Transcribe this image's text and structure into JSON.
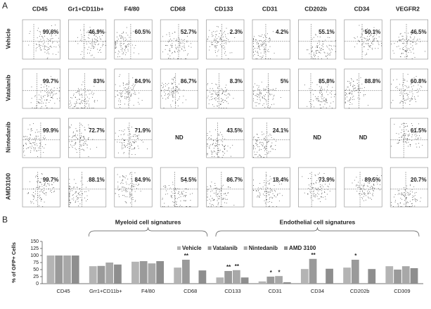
{
  "panel_a": {
    "label": "A",
    "columns": [
      "CD45",
      "Gr1+CD11b+",
      "F4/80",
      "CD68",
      "CD133",
      "CD31",
      "CD202b",
      "CD34",
      "VEGFR2"
    ],
    "rows": [
      {
        "name": "Vehicle",
        "cells": [
          "99.6%",
          "46.9%",
          "60.5%",
          "52.7%",
          "2.3%",
          "4.2%",
          "55.1%",
          "50.1%",
          "46.5%"
        ]
      },
      {
        "name": "Vatalanib",
        "cells": [
          "99.7%",
          "83%",
          "84.9%",
          "86.7%",
          "8.3%",
          "5%",
          "85.8%",
          "88.8%",
          "60.8%"
        ]
      },
      {
        "name": "Nintedanib",
        "cells": [
          "99.9%",
          "72.7%",
          "71.9%",
          "ND",
          "43.5%",
          "24.1%",
          "ND",
          "ND",
          "61.5%"
        ]
      },
      {
        "name": "AMD3100",
        "cells": [
          "99.7%",
          "88.1%",
          "84.9%",
          "54.5%",
          "86.7%",
          "18.4%",
          "73.9%",
          "89.5%",
          "20.7%"
        ]
      }
    ]
  },
  "chart_data": {
    "type": "bar",
    "panel_label": "B",
    "y_label": "% of GFP+ Cells",
    "categories": [
      "CD45",
      "Grr1+CD11b+",
      "F4/80",
      "CD68",
      "CD133",
      "CD31",
      "CD34",
      "CD202b",
      "CD309"
    ],
    "series": [
      {
        "name": "Vehicle",
        "color": "#b4b4b4",
        "values": [
          100,
          62,
          78,
          57,
          22,
          8,
          52,
          57,
          62
        ]
      },
      {
        "name": "Vatalanib",
        "color": "#9a9a9a",
        "values": [
          100,
          63,
          80,
          85,
          45,
          25,
          88,
          85,
          50
        ]
      },
      {
        "name": "Nintedanib",
        "color": "#a8a8a8",
        "values": [
          100,
          75,
          72,
          null,
          48,
          27,
          null,
          null,
          62
        ]
      },
      {
        "name": "AMD 3100",
        "color": "#8e8e8e",
        "values": [
          100,
          68,
          80,
          47,
          22,
          5,
          53,
          52,
          55
        ]
      }
    ],
    "ylim": [
      0,
      150
    ],
    "yticks": [
      0,
      25,
      50,
      75,
      100,
      125,
      150
    ],
    "legend": "top",
    "groups": [
      {
        "label": "Myeloid cell signatures",
        "categories": [
          "Grr1+CD11b+",
          "F4/80",
          "CD68"
        ]
      },
      {
        "label": "Endothelial cell signatures",
        "categories": [
          "CD133",
          "CD31",
          "CD34",
          "CD202b",
          "CD309"
        ]
      }
    ],
    "annotations": [
      {
        "text": "**",
        "category": "CD68",
        "series": "Vatalanib"
      },
      {
        "text": "**",
        "category": "CD133",
        "series": "Vatalanib"
      },
      {
        "text": "**",
        "category": "CD133",
        "series": "Nintedanib"
      },
      {
        "text": "*",
        "category": "CD31",
        "series": "Vatalanib"
      },
      {
        "text": "*",
        "category": "CD31",
        "series": "Nintedanib"
      },
      {
        "text": "**",
        "category": "CD34",
        "series": "Vatalanib"
      },
      {
        "text": "*",
        "category": "CD202b",
        "series": "Vatalanib"
      }
    ]
  }
}
